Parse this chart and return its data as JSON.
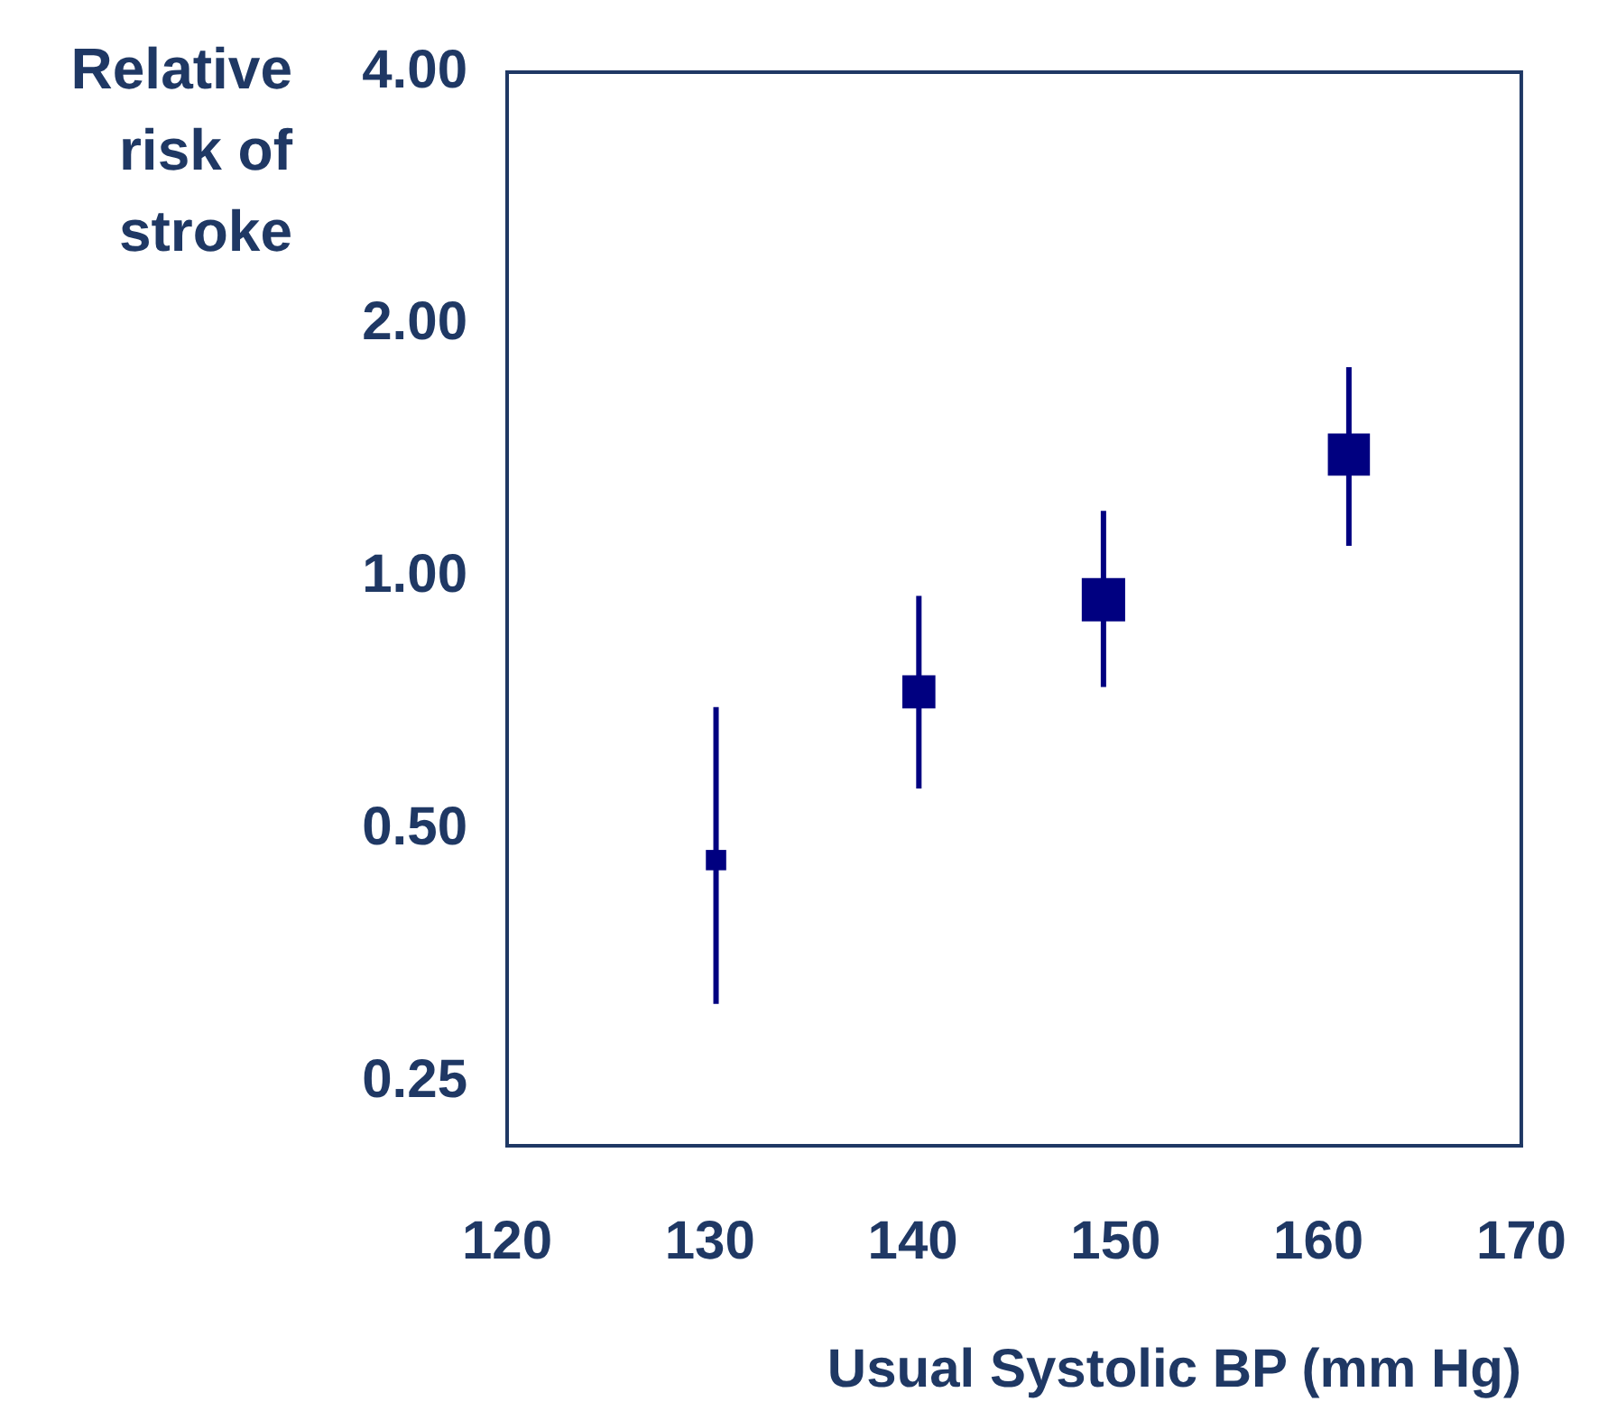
{
  "chart_data": {
    "type": "bubble",
    "xlabel": "Usual Systolic BP (mm Hg)",
    "ylabel": "Relative risk of stroke",
    "x": [
      130.3,
      140.3,
      149.4,
      161.5
    ],
    "series": [
      {
        "color": "#000080",
        "values": [
          0.46,
          0.73,
          0.94,
          1.4
        ],
        "sizes": [
          0.22,
          0.58,
          1,
          0.94
        ],
        "errors": [
          [
            0.31,
            0.7
          ],
          [
            0.56,
            0.95
          ],
          [
            0.74,
            1.2
          ],
          [
            1.09,
            1.78
          ]
        ]
      }
    ],
    "log": "y",
    "xlim": [
      120,
      170
    ],
    "xticks": [
      120,
      130,
      140,
      150,
      160,
      170
    ],
    "ylim": [
      0.21,
      4
    ],
    "yticks": [
      {
        "value": 0.25,
        "label": "0.25"
      },
      {
        "value": 0.5,
        "label": "0.50"
      },
      {
        "value": 1,
        "label": "1.00"
      },
      {
        "value": 2,
        "label": "2.00"
      },
      {
        "value": 4,
        "label": "4.00"
      }
    ],
    "grid": false,
    "legend": false,
    "marker": "square"
  }
}
